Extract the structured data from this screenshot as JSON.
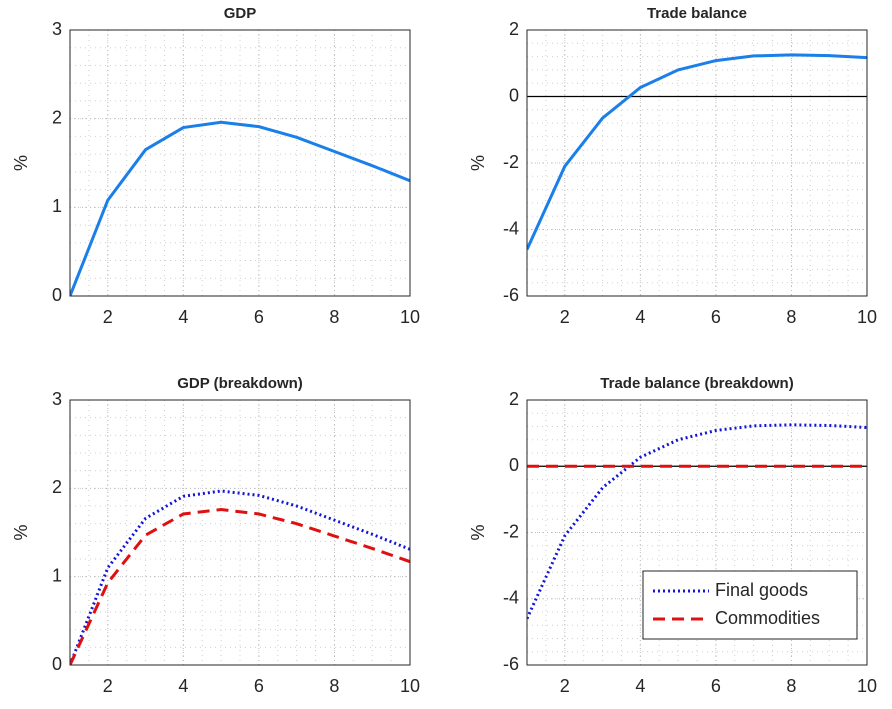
{
  "chart_data": [
    {
      "type": "line",
      "title": "GDP",
      "y_label": "%",
      "x": [
        1,
        2,
        3,
        4,
        5,
        6,
        7,
        8,
        9,
        10
      ],
      "series": [
        {
          "color": "#1a7fe8",
          "style": "solid",
          "values": [
            0,
            1.08,
            1.65,
            1.9,
            1.96,
            1.91,
            1.79,
            1.63,
            1.47,
            1.3
          ]
        }
      ],
      "xlim": [
        1,
        10
      ],
      "xticks": [
        2,
        4,
        6,
        8,
        10
      ],
      "ylim": [
        0,
        3
      ],
      "yticks": [
        0,
        1,
        2,
        3
      ],
      "grid": true,
      "minor_grid": true,
      "zero_line": false
    },
    {
      "type": "line",
      "title": "Trade balance",
      "y_label": "%",
      "x": [
        1,
        2,
        3,
        4,
        5,
        6,
        7,
        8,
        9,
        10
      ],
      "series": [
        {
          "color": "#1a7fe8",
          "style": "solid",
          "values": [
            -4.6,
            -2.1,
            -0.65,
            0.27,
            0.8,
            1.08,
            1.22,
            1.25,
            1.23,
            1.17
          ]
        }
      ],
      "xlim": [
        1,
        10
      ],
      "xticks": [
        2,
        4,
        6,
        8,
        10
      ],
      "ylim": [
        -6,
        2
      ],
      "yticks": [
        -6,
        -4,
        -2,
        0,
        2
      ],
      "grid": true,
      "minor_grid": true,
      "zero_line": true
    },
    {
      "type": "line",
      "title": "GDP (breakdown)",
      "y_label": "%",
      "x": [
        1,
        2,
        3,
        4,
        5,
        6,
        7,
        8,
        9,
        10
      ],
      "series": [
        {
          "color": "#1414d6",
          "style": "dotted",
          "values": [
            0,
            1.1,
            1.66,
            1.91,
            1.97,
            1.92,
            1.8,
            1.64,
            1.48,
            1.31
          ]
        },
        {
          "color": "#e01010",
          "style": "dashed",
          "values": [
            0,
            0.93,
            1.47,
            1.71,
            1.76,
            1.71,
            1.6,
            1.46,
            1.32,
            1.17
          ]
        }
      ],
      "xlim": [
        1,
        10
      ],
      "xticks": [
        2,
        4,
        6,
        8,
        10
      ],
      "ylim": [
        0,
        3
      ],
      "yticks": [
        0,
        1,
        2,
        3
      ],
      "grid": true,
      "minor_grid": true,
      "zero_line": false
    },
    {
      "type": "line",
      "title": "Trade balance (breakdown)",
      "y_label": "%",
      "x": [
        1,
        2,
        3,
        4,
        5,
        6,
        7,
        8,
        9,
        10
      ],
      "series": [
        {
          "name": "Final goods",
          "color": "#1414d6",
          "style": "dotted",
          "values": [
            -4.6,
            -2.1,
            -0.65,
            0.27,
            0.8,
            1.08,
            1.22,
            1.25,
            1.23,
            1.17
          ]
        },
        {
          "name": "Commodities",
          "color": "#e01010",
          "style": "dashed",
          "values": [
            0,
            0,
            0,
            0,
            0,
            0,
            0,
            0,
            0,
            0
          ]
        }
      ],
      "xlim": [
        1,
        10
      ],
      "xticks": [
        2,
        4,
        6,
        8,
        10
      ],
      "ylim": [
        -6,
        2
      ],
      "yticks": [
        -6,
        -4,
        -2,
        0,
        2
      ],
      "grid": true,
      "minor_grid": true,
      "zero_line": true,
      "legend": "lower-right"
    }
  ]
}
